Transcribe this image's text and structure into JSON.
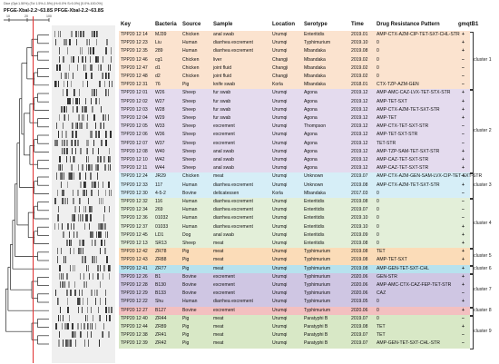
{
  "header": {
    "note": "Dice (Opt:1.50%) (Tol 1.5%-1.5%) (H>0.0% S>0.0%) [0.0%-100.0%]",
    "title": "PFGE-XbaI-2.2~63.8S",
    "gel_title": "PFGE-XbaI-2.2~63.8S",
    "scale_ticks": [
      "10",
      "20",
      "100"
    ]
  },
  "table": {
    "columns": [
      "Key",
      "Bacteria",
      "Source",
      "Sample",
      "Location",
      "Serotype",
      "Time",
      "Drug Resistance Pattern",
      "gmqtB1"
    ],
    "rows": [
      {
        "key": "TPP20 12 14",
        "bacteria": "MJ39",
        "source": "Chicken",
        "sample": "anal swab",
        "location": "Urumqi",
        "serotype": "Enteritidis",
        "time": "2019.01",
        "drug": "AMP-CTX-AZM-CIP-TET-SXT-CHL-STR",
        "g": "+"
      },
      {
        "key": "TPP20 12 23",
        "bacteria": "Liu",
        "source": "Human",
        "sample": "diarrhea excrement",
        "location": "Urumqi",
        "serotype": "Typhimurium",
        "time": "2019.10",
        "drug": "0",
        "g": "+"
      },
      {
        "key": "TPP20 12 35",
        "bacteria": "289",
        "source": "Human",
        "sample": "diarrhea excrement",
        "location": "Urumqi",
        "serotype": "Mbandaka",
        "time": "2019.08",
        "drug": "0",
        "g": "+"
      },
      {
        "key": "TPP20 12 46",
        "bacteria": "cg1",
        "source": "Chicken",
        "sample": "liver",
        "location": "Changji",
        "serotype": "Mbandaka",
        "time": "2019.02",
        "drug": "0",
        "g": "−"
      },
      {
        "key": "TPP20 12 47",
        "bacteria": "d1",
        "source": "Chicken",
        "sample": "joint fluid",
        "location": "Changji",
        "serotype": "Mbandaka",
        "time": "2019.02",
        "drug": "0",
        "g": "−"
      },
      {
        "key": "TPP20 12 48",
        "bacteria": "d2",
        "source": "Chicken",
        "sample": "joint fluid",
        "location": "Changji",
        "serotype": "Mbandaka",
        "time": "2019.02",
        "drug": "0",
        "g": "−"
      },
      {
        "key": "TPP20 12 31",
        "bacteria": "76",
        "source": "Pig",
        "sample": "knife swab",
        "location": "Korla",
        "serotype": "Mbandaka",
        "time": "2018.01",
        "drug": "CTX-TZP-AZM-GEN",
        "g": "−"
      },
      {
        "key": "TPP20 12 01",
        "bacteria": "W26",
        "source": "Sheep",
        "sample": "fur swab",
        "location": "Urumqi",
        "serotype": "Agona",
        "time": "2019.12",
        "drug": "AMP-AMC-CAZ-LVX-TET-STX-STR",
        "g": "+"
      },
      {
        "key": "TPP20 12 02",
        "bacteria": "W27",
        "source": "Sheep",
        "sample": "fur swab",
        "location": "Urumqi",
        "serotype": "Agona",
        "time": "2019.12",
        "drug": "AMP-TET-SXT",
        "g": "+"
      },
      {
        "key": "TPP20 12 03",
        "bacteria": "W28",
        "source": "Sheep",
        "sample": "fur swab",
        "location": "Urumqi",
        "serotype": "Agona",
        "time": "2019.12",
        "drug": "AMP-CTX-AZM-TET-SXT-STR",
        "g": "+"
      },
      {
        "key": "TPP20 12 04",
        "bacteria": "W29",
        "source": "Sheep",
        "sample": "fur swab",
        "location": "Urumqi",
        "serotype": "Agona",
        "time": "2019.12",
        "drug": "AMP-TET",
        "g": "+"
      },
      {
        "key": "TPP20 12 05",
        "bacteria": "W33",
        "source": "Sheep",
        "sample": "excrement",
        "location": "Urumqi",
        "serotype": "Thompson",
        "time": "2019.12",
        "drug": "AMP-CTX-TET-SXT-STR",
        "g": "−"
      },
      {
        "key": "TPP20 12 06",
        "bacteria": "W36",
        "source": "Sheep",
        "sample": "excrement",
        "location": "Urumqi",
        "serotype": "Agona",
        "time": "2019.12",
        "drug": "AMP-TET-SXT-STR",
        "g": "−"
      },
      {
        "key": "TPP20 12 07",
        "bacteria": "W37",
        "source": "Sheep",
        "sample": "excrement",
        "location": "Urumqi",
        "serotype": "Agona",
        "time": "2019.12",
        "drug": "TET-STR",
        "g": "−"
      },
      {
        "key": "TPP20 12 08",
        "bacteria": "W40",
        "source": "Sheep",
        "sample": "anal swab",
        "location": "Urumqi",
        "serotype": "Agona",
        "time": "2019.12",
        "drug": "AMP-TZP-SAM-TET-SXT-STR",
        "g": "+"
      },
      {
        "key": "TPP20 12 10",
        "bacteria": "W42",
        "source": "Sheep",
        "sample": "anal swab",
        "location": "Urumqi",
        "serotype": "Agona",
        "time": "2019.12",
        "drug": "AMP-CAZ-TET-SXT-STR",
        "g": "+"
      },
      {
        "key": "TPP20 12 11",
        "bacteria": "W44",
        "source": "Sheep",
        "sample": "anal swab",
        "location": "Urumqi",
        "serotype": "Agona",
        "time": "2019.12",
        "drug": "AMP-CAZ-TET-SXT-STR",
        "g": "+"
      },
      {
        "key": "TPP20 12 24",
        "bacteria": "JR29",
        "source": "Chicken",
        "sample": "meat",
        "location": "Urumqi",
        "serotype": "Unknown",
        "time": "2019.07",
        "drug": "AMP-CTX-AZM-GEN-SAM-LVX-CIP-TET-SXT-STR",
        "g": "+"
      },
      {
        "key": "TPP20 12 33",
        "bacteria": "117",
        "source": "Human",
        "sample": "diarrhea excrement",
        "location": "Urumqi",
        "serotype": "Unknown",
        "time": "2019.08",
        "drug": "AMP-CTX-AZM-TET-SXT-STR",
        "g": "+"
      },
      {
        "key": "TPP20 12 30",
        "bacteria": "4-5-2",
        "source": "Bovine",
        "sample": "delicatessen",
        "location": "Korla",
        "serotype": "Mbandaka",
        "time": "2017.03",
        "drug": "0",
        "g": "−"
      },
      {
        "key": "TPP20 12 32",
        "bacteria": "116",
        "source": "Human",
        "sample": "diarrhea excrement",
        "location": "Urumqi",
        "serotype": "Enteritidis",
        "time": "2019.08",
        "drug": "0",
        "g": "−"
      },
      {
        "key": "TPP20 12 34",
        "bacteria": "269",
        "source": "Human",
        "sample": "diarrhea excrement",
        "location": "Urumqi",
        "serotype": "Enteritidis",
        "time": "2019.07",
        "drug": "0",
        "g": "−"
      },
      {
        "key": "TPP20 12 36",
        "bacteria": "01032",
        "source": "Human",
        "sample": "diarrhea excrement",
        "location": "Urumqi",
        "serotype": "Enteritidis",
        "time": "2019.10",
        "drug": "0",
        "g": "−"
      },
      {
        "key": "TPP20 12 37",
        "bacteria": "01033",
        "source": "Human",
        "sample": "diarrhea excrement",
        "location": "Urumqi",
        "serotype": "Enteritidis",
        "time": "2019.10",
        "drug": "0",
        "g": "+"
      },
      {
        "key": "TPP20 12 45",
        "bacteria": "LD1",
        "source": "Dog",
        "sample": "anal swab",
        "location": "Urumqi",
        "serotype": "Enteritidis",
        "time": "2019.09",
        "drug": "0",
        "g": "+"
      },
      {
        "key": "TPP20 12 13",
        "bacteria": "SR13",
        "source": "Sheep",
        "sample": "meat",
        "location": "Urumqi",
        "serotype": "Enteritidis",
        "time": "2019.08",
        "drug": "0",
        "g": "+"
      },
      {
        "key": "TPP20 12 42",
        "bacteria": "ZR78",
        "source": "Pig",
        "sample": "meat",
        "location": "Urumqi",
        "serotype": "Typhimurium",
        "time": "2019.08",
        "drug": "TET",
        "g": "+"
      },
      {
        "key": "TPP20 12 43",
        "bacteria": "ZR88",
        "source": "Pig",
        "sample": "meat",
        "location": "Urumqi",
        "serotype": "Typhimurium",
        "time": "2019.08",
        "drug": "AMP-TET-SXT",
        "g": "+"
      },
      {
        "key": "TPP20 12 41",
        "bacteria": "ZR77",
        "source": "Pig",
        "sample": "meat",
        "location": "Urumqi",
        "serotype": "Typhimurium",
        "time": "2019.08",
        "drug": "AMP-GEN-TET-SXT-CHL",
        "g": "+"
      },
      {
        "key": "TPP20 12 26",
        "bacteria": "B1",
        "source": "Bovine",
        "sample": "excrement",
        "location": "Urumqi",
        "serotype": "Typhimurium",
        "time": "2020.06",
        "drug": "GEN-STR",
        "g": "+"
      },
      {
        "key": "TPP20 12 28",
        "bacteria": "B130",
        "source": "Bovine",
        "sample": "excrement",
        "location": "Urumqi",
        "serotype": "Typhimurium",
        "time": "2020.06",
        "drug": "AMP-AMC-CTX-CAZ-FEP-TET-STR",
        "g": "+"
      },
      {
        "key": "TPP20 12 29",
        "bacteria": "B133",
        "source": "Bovine",
        "sample": "excrement",
        "location": "Urumqi",
        "serotype": "Typhimurium",
        "time": "2020.06",
        "drug": "CAZ",
        "g": "−"
      },
      {
        "key": "TPP20 12 22",
        "bacteria": "Shu",
        "source": "Human",
        "sample": "diarrhea excrement",
        "location": "Urumqi",
        "serotype": "Typhimurium",
        "time": "2019.05",
        "drug": "0",
        "g": "+"
      },
      {
        "key": "TPP20 12 27",
        "bacteria": "B127",
        "source": "Bovine",
        "sample": "excrement",
        "location": "Urumqi",
        "serotype": "Typhimurium",
        "time": "2020.06",
        "drug": "0",
        "g": "+"
      },
      {
        "key": "TPP20 12 40",
        "bacteria": "ZR44",
        "source": "Pig",
        "sample": "meat",
        "location": "Urumqi",
        "serotype": "Paratyphi B",
        "time": "2019.07",
        "drug": "0",
        "g": "−"
      },
      {
        "key": "TPP20 12 44",
        "bacteria": "ZR89",
        "source": "Pig",
        "sample": "meat",
        "location": "Urumqi",
        "serotype": "Paratyphi B",
        "time": "2019.08",
        "drug": "TET",
        "g": "+"
      },
      {
        "key": "TPP20 12 38",
        "bacteria": "ZR41",
        "source": "Pig",
        "sample": "meat",
        "location": "Urumqi",
        "serotype": "Paratyphi B",
        "time": "2019.07",
        "drug": "TET",
        "g": "−"
      },
      {
        "key": "TPP20 12 39",
        "bacteria": "ZR42",
        "source": "Pig",
        "sample": "meat",
        "location": "Urumqi",
        "serotype": "Paratyphi B",
        "time": "2019.07",
        "drug": "AMP-GEN-TET-SXT-CHL-STR",
        "g": "−"
      }
    ],
    "clusters": [
      {
        "label": "cluster 1",
        "start": 0,
        "end": 6,
        "color": "#fbe3cf"
      },
      {
        "label": "cluster 2",
        "start": 7,
        "end": 16,
        "color": "#e4dbee"
      },
      {
        "label": "cluster 3",
        "start": 17,
        "end": 19,
        "color": "#d6eef7"
      },
      {
        "label": "cluster 4",
        "start": 20,
        "end": 25,
        "color": "#e3efd9"
      },
      {
        "label": "cluster 5",
        "start": 26,
        "end": 27,
        "color": "#fbdcb8"
      },
      {
        "label": "cluster 6",
        "start": 28,
        "end": 28,
        "color": "#b7e2ee"
      },
      {
        "label": "cluster 7",
        "start": 29,
        "end": 32,
        "color": "#cfc6e3"
      },
      {
        "label": "cluster 8",
        "start": 33,
        "end": 33,
        "color": "#f3c0c0"
      },
      {
        "label": "cluster 9",
        "start": 34,
        "end": 37,
        "color": "#d8e8c6"
      }
    ]
  }
}
